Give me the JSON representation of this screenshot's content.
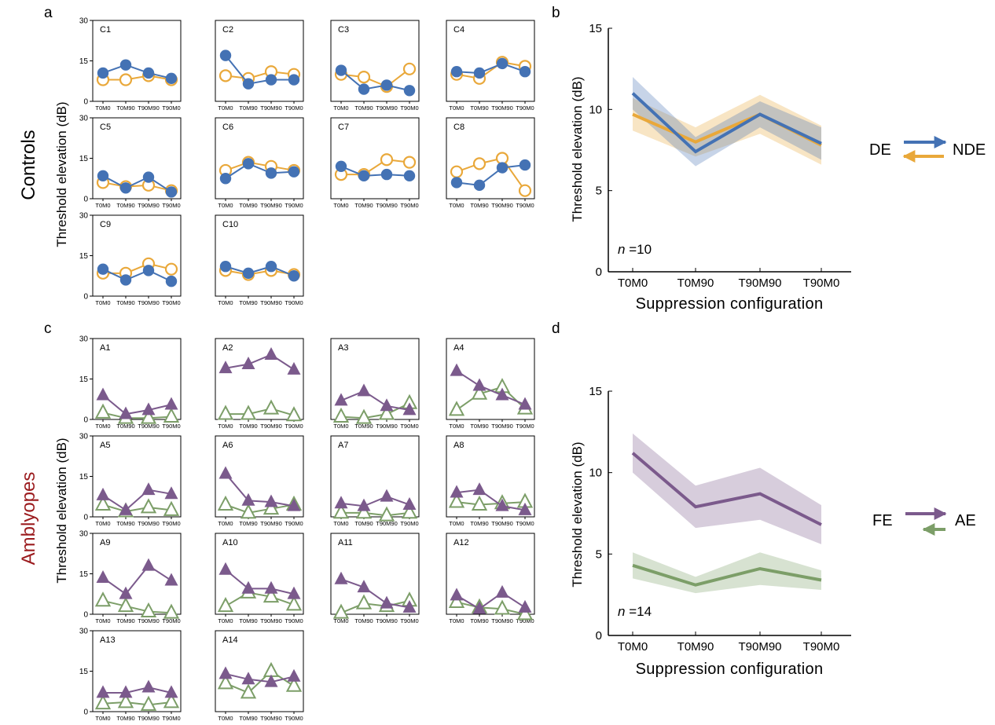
{
  "colors": {
    "de": "#4472b4",
    "nde": "#e9a83a",
    "fe": "#7b5a8c",
    "ae": "#7c9e68",
    "amblyopes_title": "#9b1b1e"
  },
  "panels": {
    "a": "a",
    "b": "b",
    "c": "c",
    "d": "d"
  },
  "groups": {
    "controls": "Controls",
    "amblyopes": "Amblyopes"
  },
  "small_grid": {
    "ylabel": "Threshold elevation (dB)",
    "y_ticks": [
      "0",
      "15",
      "30"
    ],
    "ylim": [
      0,
      30
    ],
    "x_ticks": [
      "T0M0",
      "T0M90",
      "T90M90",
      "T90M0"
    ]
  },
  "large_axes": {
    "xlabel": "Suppression configuration",
    "ylabel": "Threshold elevation (dB)",
    "x_ticks": [
      "T0M0",
      "T0M90",
      "T90M90",
      "T90M0"
    ],
    "y_ticks": [
      "0",
      "5",
      "10",
      "15"
    ]
  },
  "legend_b": {
    "left": "DE",
    "right": "NDE"
  },
  "legend_d": {
    "left": "FE",
    "right": "AE"
  },
  "n_b": {
    "italic": "n",
    "rest": " =10"
  },
  "n_d": {
    "italic": "n",
    "rest": " =14"
  },
  "chart_data": [
    {
      "panel": "a",
      "type": "line",
      "ylabel": "Threshold elevation (dB)",
      "ylim": [
        0,
        30
      ],
      "categories": [
        "T0M0",
        "T0M90",
        "T90M90",
        "T90M0"
      ],
      "subjects": [
        {
          "label": "C1",
          "de": [
            10.5,
            13.5,
            10.5,
            8.5
          ],
          "nde": [
            8,
            8,
            9.5,
            8
          ]
        },
        {
          "label": "C2",
          "de": [
            17,
            6.5,
            8,
            8
          ],
          "nde": [
            9.5,
            8.5,
            11,
            10
          ]
        },
        {
          "label": "C3",
          "de": [
            11.5,
            4.5,
            6,
            4
          ],
          "nde": [
            10,
            9,
            5.5,
            12
          ]
        },
        {
          "label": "C4",
          "de": [
            11,
            10.5,
            14,
            11
          ],
          "nde": [
            10,
            8.5,
            14.5,
            13
          ]
        },
        {
          "label": "C5",
          "de": [
            8.5,
            4,
            8,
            2.5
          ],
          "nde": [
            6,
            4.5,
            5,
            3
          ]
        },
        {
          "label": "C6",
          "de": [
            7.5,
            13,
            9.5,
            10
          ],
          "nde": [
            10.5,
            13.5,
            12,
            10.5
          ]
        },
        {
          "label": "C7",
          "de": [
            12,
            8.5,
            9,
            8.5
          ],
          "nde": [
            9,
            9,
            14.5,
            13.5
          ]
        },
        {
          "label": "C8",
          "de": [
            6,
            5,
            11.5,
            12.5
          ],
          "nde": [
            10,
            13,
            15,
            3
          ]
        },
        {
          "label": "C9",
          "de": [
            10,
            6,
            9.5,
            5.5
          ],
          "nde": [
            8.5,
            8.5,
            12,
            10
          ]
        },
        {
          "label": "C10",
          "de": [
            11,
            8.5,
            11,
            7.5
          ],
          "nde": [
            9.5,
            8,
            9.5,
            8
          ]
        }
      ]
    },
    {
      "panel": "b",
      "type": "line",
      "xlabel": "Suppression configuration",
      "ylabel": "Threshold elevation (dB)",
      "ylim": [
        0,
        15
      ],
      "categories": [
        "T0M0",
        "T0M90",
        "T90M90",
        "T90M0"
      ],
      "series": [
        {
          "name": "DE",
          "values": [
            11,
            7.4,
            9.7,
            7.9
          ],
          "lower": [
            10,
            6.5,
            8.9,
            6.9
          ],
          "upper": [
            12,
            8.3,
            10.5,
            8.9
          ]
        },
        {
          "name": "NDE",
          "values": [
            9.7,
            8,
            9.7,
            7.8
          ],
          "lower": [
            8.7,
            7.1,
            8.5,
            6.6
          ],
          "upper": [
            10.7,
            8.9,
            10.9,
            9.0
          ]
        }
      ]
    },
    {
      "panel": "c",
      "type": "line",
      "ylabel": "Threshold elevation (dB)",
      "ylim": [
        0,
        30
      ],
      "categories": [
        "T0M0",
        "T0M90",
        "T90M90",
        "T90M0"
      ],
      "subjects": [
        {
          "label": "A1",
          "fe": [
            9,
            2,
            3.5,
            5.5
          ],
          "ae": [
            2.5,
            0.5,
            0.5,
            1
          ]
        },
        {
          "label": "A2",
          "fe": [
            19,
            20.5,
            24,
            18.5
          ],
          "ae": [
            2,
            2,
            4,
            1.5
          ]
        },
        {
          "label": "A3",
          "fe": [
            7,
            10.5,
            5,
            3.5
          ],
          "ae": [
            1,
            0.5,
            2,
            6
          ]
        },
        {
          "label": "A4",
          "fe": [
            18,
            12.5,
            9,
            5.5
          ],
          "ae": [
            3.5,
            9.5,
            12,
            4
          ]
        },
        {
          "label": "A5",
          "fe": [
            8,
            2.5,
            10,
            8.5
          ],
          "ae": [
            4.5,
            2,
            3.5,
            2.5
          ]
        },
        {
          "label": "A6",
          "fe": [
            16,
            6,
            5.5,
            4
          ],
          "ae": [
            4.5,
            1.5,
            3,
            4.5
          ]
        },
        {
          "label": "A7",
          "fe": [
            5,
            4,
            7.5,
            4.5
          ],
          "ae": [
            1.5,
            1.5,
            0.5,
            1.5
          ]
        },
        {
          "label": "A8",
          "fe": [
            9,
            10,
            4,
            2.5
          ],
          "ae": [
            5.5,
            4.5,
            5,
            5.5
          ]
        },
        {
          "label": "A9",
          "fe": [
            13.5,
            7.5,
            18,
            12.5
          ],
          "ae": [
            5,
            3,
            1,
            0.5
          ]
        },
        {
          "label": "A10",
          "fe": [
            16.5,
            9.5,
            9.5,
            7.5
          ],
          "ae": [
            3,
            8,
            6.5,
            3.5
          ]
        },
        {
          "label": "A11",
          "fe": [
            13,
            10,
            4,
            2.5
          ],
          "ae": [
            0.5,
            4,
            3,
            5
          ]
        },
        {
          "label": "A12",
          "fe": [
            7,
            2,
            8,
            2.5
          ],
          "ae": [
            4.5,
            2.5,
            2,
            0
          ]
        },
        {
          "label": "A13",
          "fe": [
            7,
            7,
            9,
            7
          ],
          "ae": [
            3,
            3.5,
            2.5,
            3.5
          ]
        },
        {
          "label": "A14",
          "fe": [
            14,
            12,
            11,
            13
          ],
          "ae": [
            10.5,
            7,
            15,
            9.5
          ]
        }
      ]
    },
    {
      "panel": "d",
      "type": "line",
      "xlabel": "Suppression configuration",
      "ylabel": "Threshold elevation (dB)",
      "ylim": [
        0,
        15
      ],
      "categories": [
        "T0M0",
        "T0M90",
        "T90M90",
        "T90M0"
      ],
      "series": [
        {
          "name": "FE",
          "values": [
            11.2,
            7.9,
            8.7,
            6.8
          ],
          "lower": [
            10,
            6.6,
            7.1,
            5.6
          ],
          "upper": [
            12.4,
            9.2,
            10.3,
            8.0
          ]
        },
        {
          "name": "AE",
          "values": [
            4.3,
            3.1,
            4.1,
            3.4
          ],
          "lower": [
            3.5,
            2.6,
            3.1,
            2.8
          ],
          "upper": [
            5.1,
            3.6,
            5.1,
            4.0
          ]
        }
      ]
    }
  ]
}
